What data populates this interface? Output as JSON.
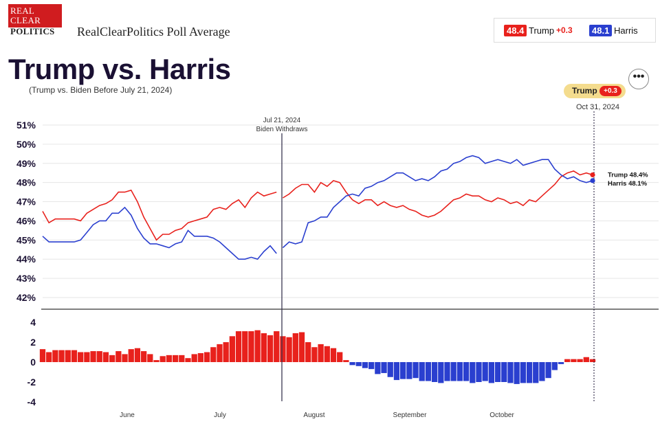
{
  "header": {
    "logo_lines": [
      "REAL",
      "CLEAR",
      "POLITICS"
    ],
    "site_title": "RealClearPolitics Poll Average",
    "title": "Trump vs. Harris",
    "subtitle": "(Trump vs. Biden Before July 21, 2024)",
    "menu_label": "•••"
  },
  "legend": {
    "trump_value": "48.4",
    "trump_name": "Trump",
    "trump_spread": "+0.3",
    "harris_value": "48.1",
    "harris_name": "Harris"
  },
  "leader": {
    "name": "Trump",
    "spread": "+0.3",
    "date": "Oct 31, 2024"
  },
  "colors": {
    "trump": "#e8211c",
    "harris": "#2a3fcf",
    "event_line": "#3a3550",
    "pill": "#f4dc8e"
  },
  "chart_data": [
    {
      "type": "line",
      "title": "",
      "ylim": [
        42,
        51
      ],
      "ytick_labels": [
        "51%",
        "50%",
        "49%",
        "48%",
        "47%",
        "46%",
        "45%",
        "44%",
        "43%",
        "42%"
      ],
      "x_labels": [
        "June",
        "July",
        "August",
        "September",
        "October"
      ],
      "annotation": {
        "date": "Jul 21, 2024",
        "label": "Biden Withdraws"
      },
      "end_labels": [
        "Trump 48.4%",
        "Harris 48.1%"
      ],
      "gridlines": true,
      "series": [
        {
          "name": "Trump",
          "values": [
            46.5,
            45.9,
            46.1,
            46.1,
            46.1,
            46.1,
            46.0,
            46.4,
            46.6,
            46.8,
            46.9,
            47.1,
            47.5,
            47.5,
            47.6,
            47.0,
            46.2,
            45.6,
            45.0,
            45.3,
            45.3,
            45.5,
            45.6,
            45.9,
            46.0,
            46.1,
            46.2,
            46.6,
            46.7,
            46.6,
            46.9,
            47.1,
            46.7,
            47.2,
            47.5,
            47.3,
            47.4,
            47.5,
            47.2,
            47.4,
            47.7,
            47.9,
            47.9,
            47.5,
            48.0,
            47.8,
            48.1,
            48.0,
            47.5,
            47.1,
            46.9,
            47.1,
            47.1,
            46.8,
            47.0,
            46.8,
            46.7,
            46.8,
            46.6,
            46.5,
            46.3,
            46.2,
            46.3,
            46.5,
            46.8,
            47.1,
            47.2,
            47.4,
            47.3,
            47.3,
            47.1,
            47.0,
            47.2,
            47.1,
            46.9,
            47.0,
            46.8,
            47.1,
            47.0,
            47.3,
            47.6,
            47.9,
            48.3,
            48.5,
            48.6,
            48.4,
            48.5,
            48.4
          ]
        },
        {
          "name": "Harris",
          "values": [
            45.2,
            44.9,
            44.9,
            44.9,
            44.9,
            44.9,
            45.0,
            45.4,
            45.8,
            46.0,
            46.0,
            46.4,
            46.4,
            46.7,
            46.3,
            45.6,
            45.1,
            44.8,
            44.8,
            44.7,
            44.6,
            44.8,
            44.9,
            45.5,
            45.2,
            45.2,
            45.2,
            45.1,
            44.9,
            44.6,
            44.3,
            44.0,
            44.0,
            44.1,
            44.0,
            44.4,
            44.7,
            44.3,
            44.6,
            44.9,
            44.8,
            44.9,
            45.9,
            46.0,
            46.2,
            46.2,
            46.7,
            47.0,
            47.3,
            47.4,
            47.3,
            47.7,
            47.8,
            48.0,
            48.1,
            48.3,
            48.5,
            48.5,
            48.3,
            48.1,
            48.2,
            48.1,
            48.3,
            48.6,
            48.7,
            49.0,
            49.1,
            49.3,
            49.4,
            49.3,
            49.0,
            49.1,
            49.2,
            49.1,
            49.0,
            49.2,
            48.9,
            49.0,
            49.1,
            49.2,
            49.2,
            48.7,
            48.4,
            48.2,
            48.3,
            48.1,
            48.0,
            48.1
          ]
        }
      ]
    },
    {
      "type": "bar",
      "title": "",
      "ylim": [
        -4,
        4
      ],
      "ytick_labels": [
        "4",
        "2",
        "0",
        "-2",
        "-4"
      ],
      "values": [
        1.3,
        1.0,
        1.2,
        1.2,
        1.2,
        1.2,
        1.0,
        1.0,
        1.1,
        1.1,
        1.0,
        0.7,
        1.1,
        0.8,
        1.3,
        1.4,
        1.1,
        0.8,
        0.2,
        0.6,
        0.7,
        0.7,
        0.7,
        0.4,
        0.8,
        0.9,
        1.0,
        1.5,
        1.8,
        2.0,
        2.6,
        3.1,
        3.1,
        3.1,
        3.2,
        2.9,
        2.7,
        3.1,
        2.6,
        2.5,
        2.9,
        3.0,
        2.0,
        1.5,
        1.8,
        1.6,
        1.4,
        1.0,
        0.2,
        -0.3,
        -0.4,
        -0.6,
        -0.7,
        -1.2,
        -1.1,
        -1.5,
        -1.8,
        -1.7,
        -1.7,
        -1.6,
        -1.9,
        -1.9,
        -2.0,
        -2.1,
        -1.9,
        -1.9,
        -1.9,
        -1.9,
        -2.1,
        -2.0,
        -1.9,
        -2.1,
        -2.0,
        -2.0,
        -2.1,
        -2.2,
        -2.1,
        -2.1,
        -2.1,
        -1.9,
        -1.6,
        -0.8,
        -0.2,
        0.3,
        0.3,
        0.3,
        0.5,
        0.3
      ]
    }
  ]
}
